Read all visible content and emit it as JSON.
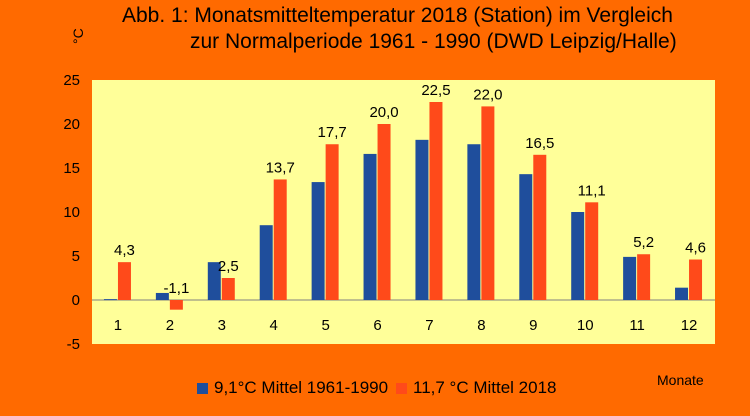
{
  "chart_data": {
    "type": "bar",
    "title_lines": [
      "Abb. 1: Monatsmitteltemperatur 2018 (Station) im Vergleich",
      "zur Normalperiode 1961 - 1990 (DWD Leipzig/Halle)"
    ],
    "ylabel": "°C",
    "xlabel": "Monate",
    "categories": [
      "1",
      "2",
      "3",
      "4",
      "5",
      "6",
      "7",
      "8",
      "9",
      "10",
      "11",
      "12"
    ],
    "ylim": [
      -5,
      25
    ],
    "yticks": [
      -5,
      0,
      5,
      10,
      15,
      20,
      25
    ],
    "ytick_labels": [
      "-5",
      "0",
      "5",
      "10",
      "15",
      "20",
      "25"
    ],
    "grid": false,
    "legend_position": "bottom",
    "series": [
      {
        "name": "9,1°C  Mittel 1961-1990",
        "color": "#1f4e9c",
        "values": [
          0.1,
          0.8,
          4.3,
          8.5,
          13.4,
          16.6,
          18.2,
          17.7,
          14.3,
          10.0,
          4.9,
          1.4
        ]
      },
      {
        "name": "11,7 °C Mittel 2018",
        "color": "#ff4a1a",
        "values": [
          4.3,
          -1.1,
          2.5,
          13.7,
          17.7,
          20.0,
          22.5,
          22.0,
          16.5,
          11.1,
          5.2,
          4.6
        ],
        "data_labels": [
          "4,3",
          "-1,1",
          "2,5",
          "13,7",
          "17,7",
          "20,0",
          "22,5",
          "22,0",
          "16,5",
          "11,1",
          "5,2",
          "4,6"
        ]
      }
    ],
    "colors": {
      "background": "#ff6a00",
      "plot_area": "#ffff99"
    }
  }
}
